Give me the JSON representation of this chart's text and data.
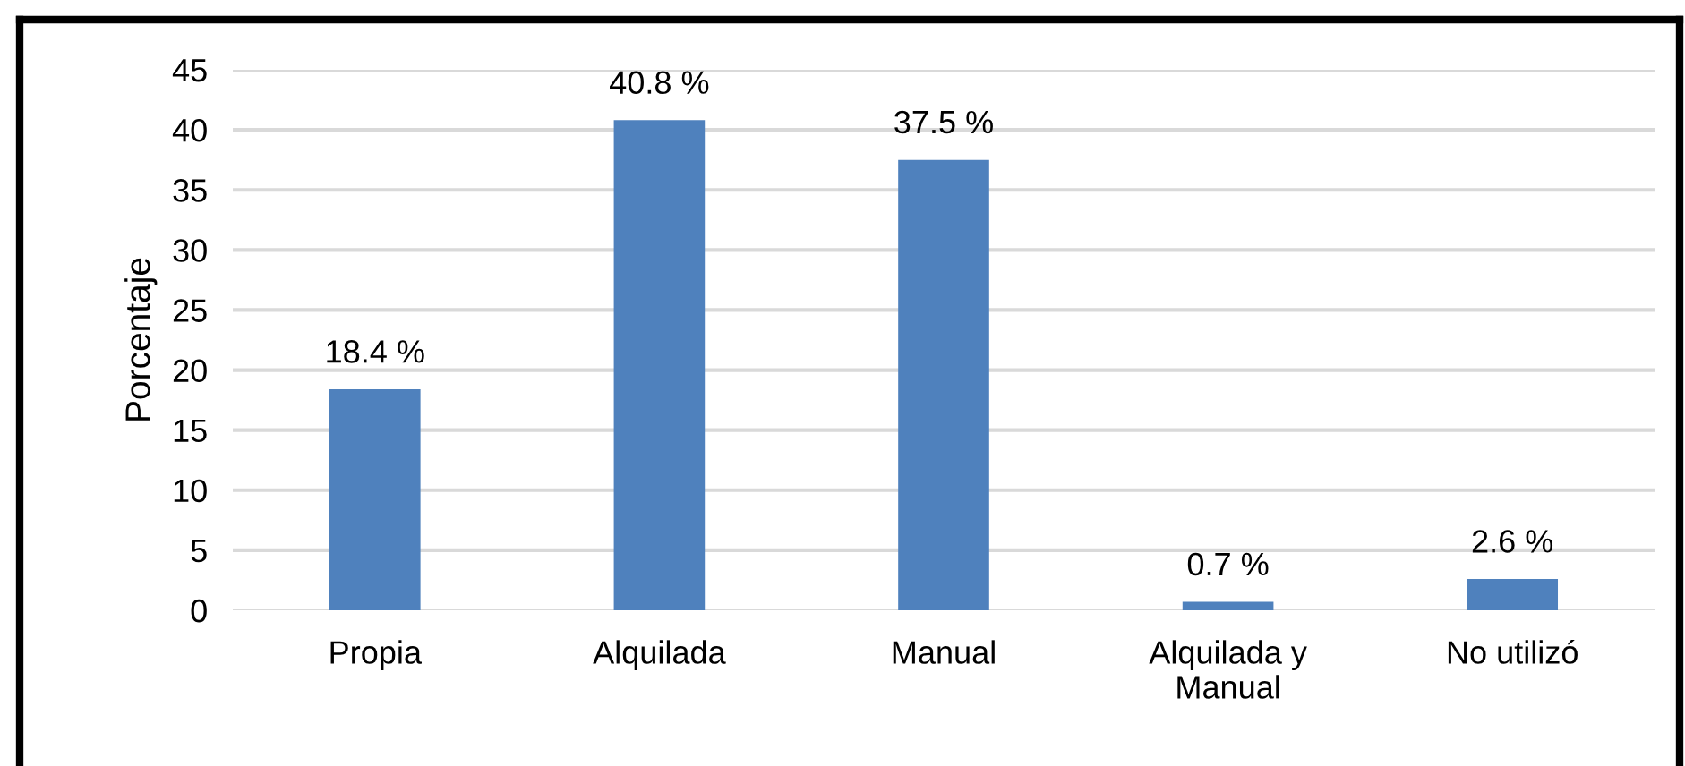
{
  "chart_data": {
    "type": "bar",
    "ylabel": "Porcentaje",
    "categories": [
      "Propia",
      "Alquilada",
      "Manual",
      "Alquilada y\nManual",
      "No utilizó"
    ],
    "values": [
      18.4,
      40.8,
      37.5,
      0.7,
      2.6
    ],
    "value_labels": [
      "18.4 %",
      "40.8 %",
      "37.5 %",
      "0.7 %",
      "2.6 %"
    ],
    "color": "#4f81bd",
    "ylim": [
      0,
      45
    ],
    "yticks": [
      0,
      5,
      10,
      15,
      20,
      25,
      30,
      35,
      40,
      45
    ],
    "grid": "y",
    "legend": false
  }
}
